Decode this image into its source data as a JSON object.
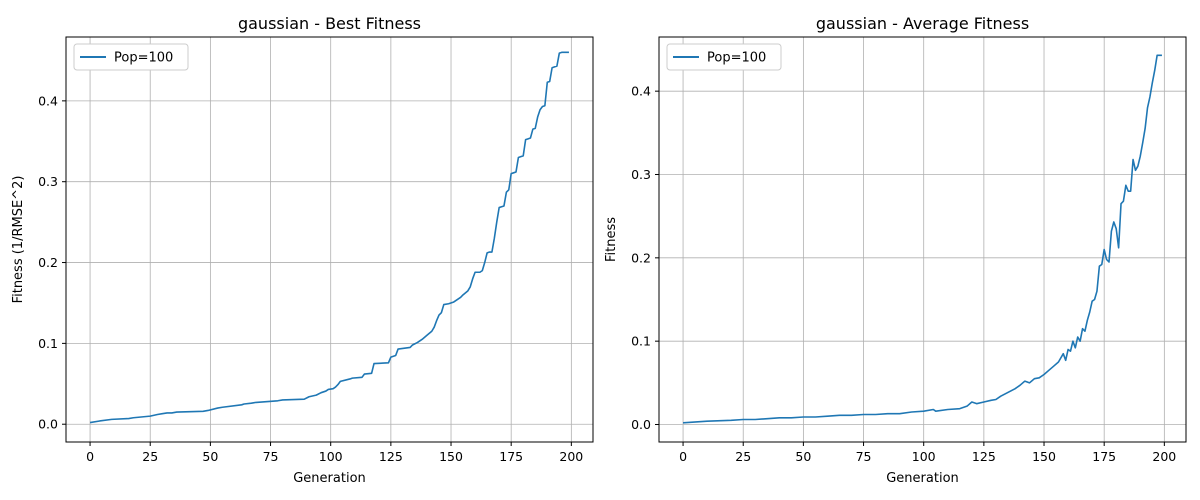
{
  "chart_data": [
    {
      "type": "line",
      "title": "gaussian - Best Fitness",
      "xlabel": "Generation",
      "ylabel": "Fitness (1/RMSE^2)",
      "xlim": [
        -10,
        209
      ],
      "ylim": [
        -0.022,
        0.479
      ],
      "xticks": [
        0,
        25,
        50,
        75,
        100,
        125,
        150,
        175,
        200
      ],
      "yticks": [
        0.0,
        0.1,
        0.2,
        0.3,
        0.4
      ],
      "xtick_labels": [
        "0",
        "25",
        "50",
        "75",
        "100",
        "125",
        "150",
        "175",
        "200"
      ],
      "ytick_labels": [
        "0.0",
        "0.1",
        "0.2",
        "0.3",
        "0.4"
      ],
      "grid": true,
      "legend_position": "upper left",
      "line_color": "#1f77b4",
      "series": [
        {
          "name": "Pop=100",
          "x": [
            0,
            4,
            9,
            16,
            18,
            25,
            28,
            30,
            32,
            34,
            36,
            47,
            49,
            53,
            55,
            63,
            64,
            67,
            69,
            78,
            80,
            89,
            91,
            94,
            96,
            98,
            99,
            101,
            102,
            103,
            104,
            108,
            109,
            113,
            114,
            117,
            118,
            124,
            125,
            127,
            128,
            133,
            134,
            136,
            138,
            140,
            142,
            143,
            144,
            145,
            146,
            147,
            149,
            151,
            152,
            154,
            155,
            157,
            158,
            159,
            160,
            161,
            162,
            163,
            164,
            165,
            166,
            167,
            168,
            169,
            170,
            171,
            172,
            173,
            174,
            175,
            176,
            177,
            178,
            179,
            180,
            181,
            182,
            183,
            184,
            185,
            186,
            187,
            188,
            189,
            190,
            191,
            192,
            193,
            194,
            195,
            196,
            197,
            198,
            199
          ],
          "values": [
            0.002,
            0.004,
            0.006,
            0.007,
            0.008,
            0.01,
            0.012,
            0.013,
            0.014,
            0.014,
            0.015,
            0.016,
            0.017,
            0.02,
            0.021,
            0.024,
            0.025,
            0.026,
            0.027,
            0.029,
            0.03,
            0.031,
            0.034,
            0.036,
            0.039,
            0.041,
            0.043,
            0.044,
            0.046,
            0.049,
            0.053,
            0.056,
            0.057,
            0.058,
            0.062,
            0.063,
            0.075,
            0.076,
            0.083,
            0.085,
            0.093,
            0.095,
            0.098,
            0.101,
            0.105,
            0.11,
            0.115,
            0.12,
            0.128,
            0.135,
            0.138,
            0.148,
            0.149,
            0.151,
            0.153,
            0.157,
            0.16,
            0.165,
            0.17,
            0.18,
            0.188,
            0.188,
            0.188,
            0.19,
            0.2,
            0.212,
            0.213,
            0.213,
            0.23,
            0.25,
            0.268,
            0.269,
            0.27,
            0.287,
            0.29,
            0.31,
            0.311,
            0.312,
            0.33,
            0.331,
            0.332,
            0.352,
            0.353,
            0.354,
            0.365,
            0.366,
            0.38,
            0.389,
            0.393,
            0.394,
            0.423,
            0.424,
            0.441,
            0.442,
            0.443,
            0.459,
            0.46,
            0.46,
            0.46,
            0.46
          ]
        }
      ]
    },
    {
      "type": "line",
      "title": "gaussian - Average Fitness",
      "xlabel": "Generation",
      "ylabel": "Fitness",
      "xlim": [
        -10,
        209
      ],
      "ylim": [
        -0.021,
        0.465
      ],
      "xticks": [
        0,
        25,
        50,
        75,
        100,
        125,
        150,
        175,
        200
      ],
      "yticks": [
        0.0,
        0.1,
        0.2,
        0.3,
        0.4
      ],
      "xtick_labels": [
        "0",
        "25",
        "50",
        "75",
        "100",
        "125",
        "150",
        "175",
        "200"
      ],
      "ytick_labels": [
        "0.0",
        "0.1",
        "0.2",
        "0.3",
        "0.4"
      ],
      "grid": true,
      "legend_position": "upper left",
      "line_color": "#1f77b4",
      "series": [
        {
          "name": "Pop=100",
          "x": [
            0,
            10,
            20,
            25,
            30,
            35,
            40,
            45,
            50,
            55,
            60,
            65,
            70,
            75,
            80,
            85,
            90,
            95,
            100,
            104,
            105,
            110,
            115,
            118,
            120,
            122,
            125,
            128,
            130,
            132,
            134,
            136,
            138,
            140,
            142,
            144,
            146,
            148,
            150,
            152,
            154,
            156,
            158,
            159,
            160,
            161,
            162,
            163,
            164,
            165,
            166,
            167,
            168,
            169,
            170,
            171,
            172,
            173,
            174,
            175,
            176,
            177,
            178,
            179,
            180,
            181,
            182,
            183,
            184,
            185,
            186,
            187,
            188,
            189,
            190,
            191,
            192,
            193,
            194,
            195,
            196,
            197,
            198,
            199
          ],
          "values": [
            0.002,
            0.004,
            0.005,
            0.006,
            0.006,
            0.007,
            0.008,
            0.008,
            0.009,
            0.009,
            0.01,
            0.011,
            0.011,
            0.012,
            0.012,
            0.013,
            0.013,
            0.015,
            0.016,
            0.018,
            0.016,
            0.018,
            0.019,
            0.022,
            0.027,
            0.025,
            0.027,
            0.029,
            0.03,
            0.034,
            0.037,
            0.04,
            0.043,
            0.047,
            0.052,
            0.05,
            0.055,
            0.056,
            0.06,
            0.065,
            0.07,
            0.075,
            0.085,
            0.077,
            0.09,
            0.088,
            0.1,
            0.092,
            0.105,
            0.1,
            0.115,
            0.112,
            0.125,
            0.135,
            0.148,
            0.15,
            0.16,
            0.19,
            0.192,
            0.21,
            0.198,
            0.195,
            0.232,
            0.243,
            0.235,
            0.212,
            0.265,
            0.268,
            0.287,
            0.28,
            0.28,
            0.318,
            0.305,
            0.31,
            0.322,
            0.338,
            0.355,
            0.38,
            0.393,
            0.41,
            0.425,
            0.443,
            0.443,
            0.443
          ]
        }
      ]
    }
  ]
}
